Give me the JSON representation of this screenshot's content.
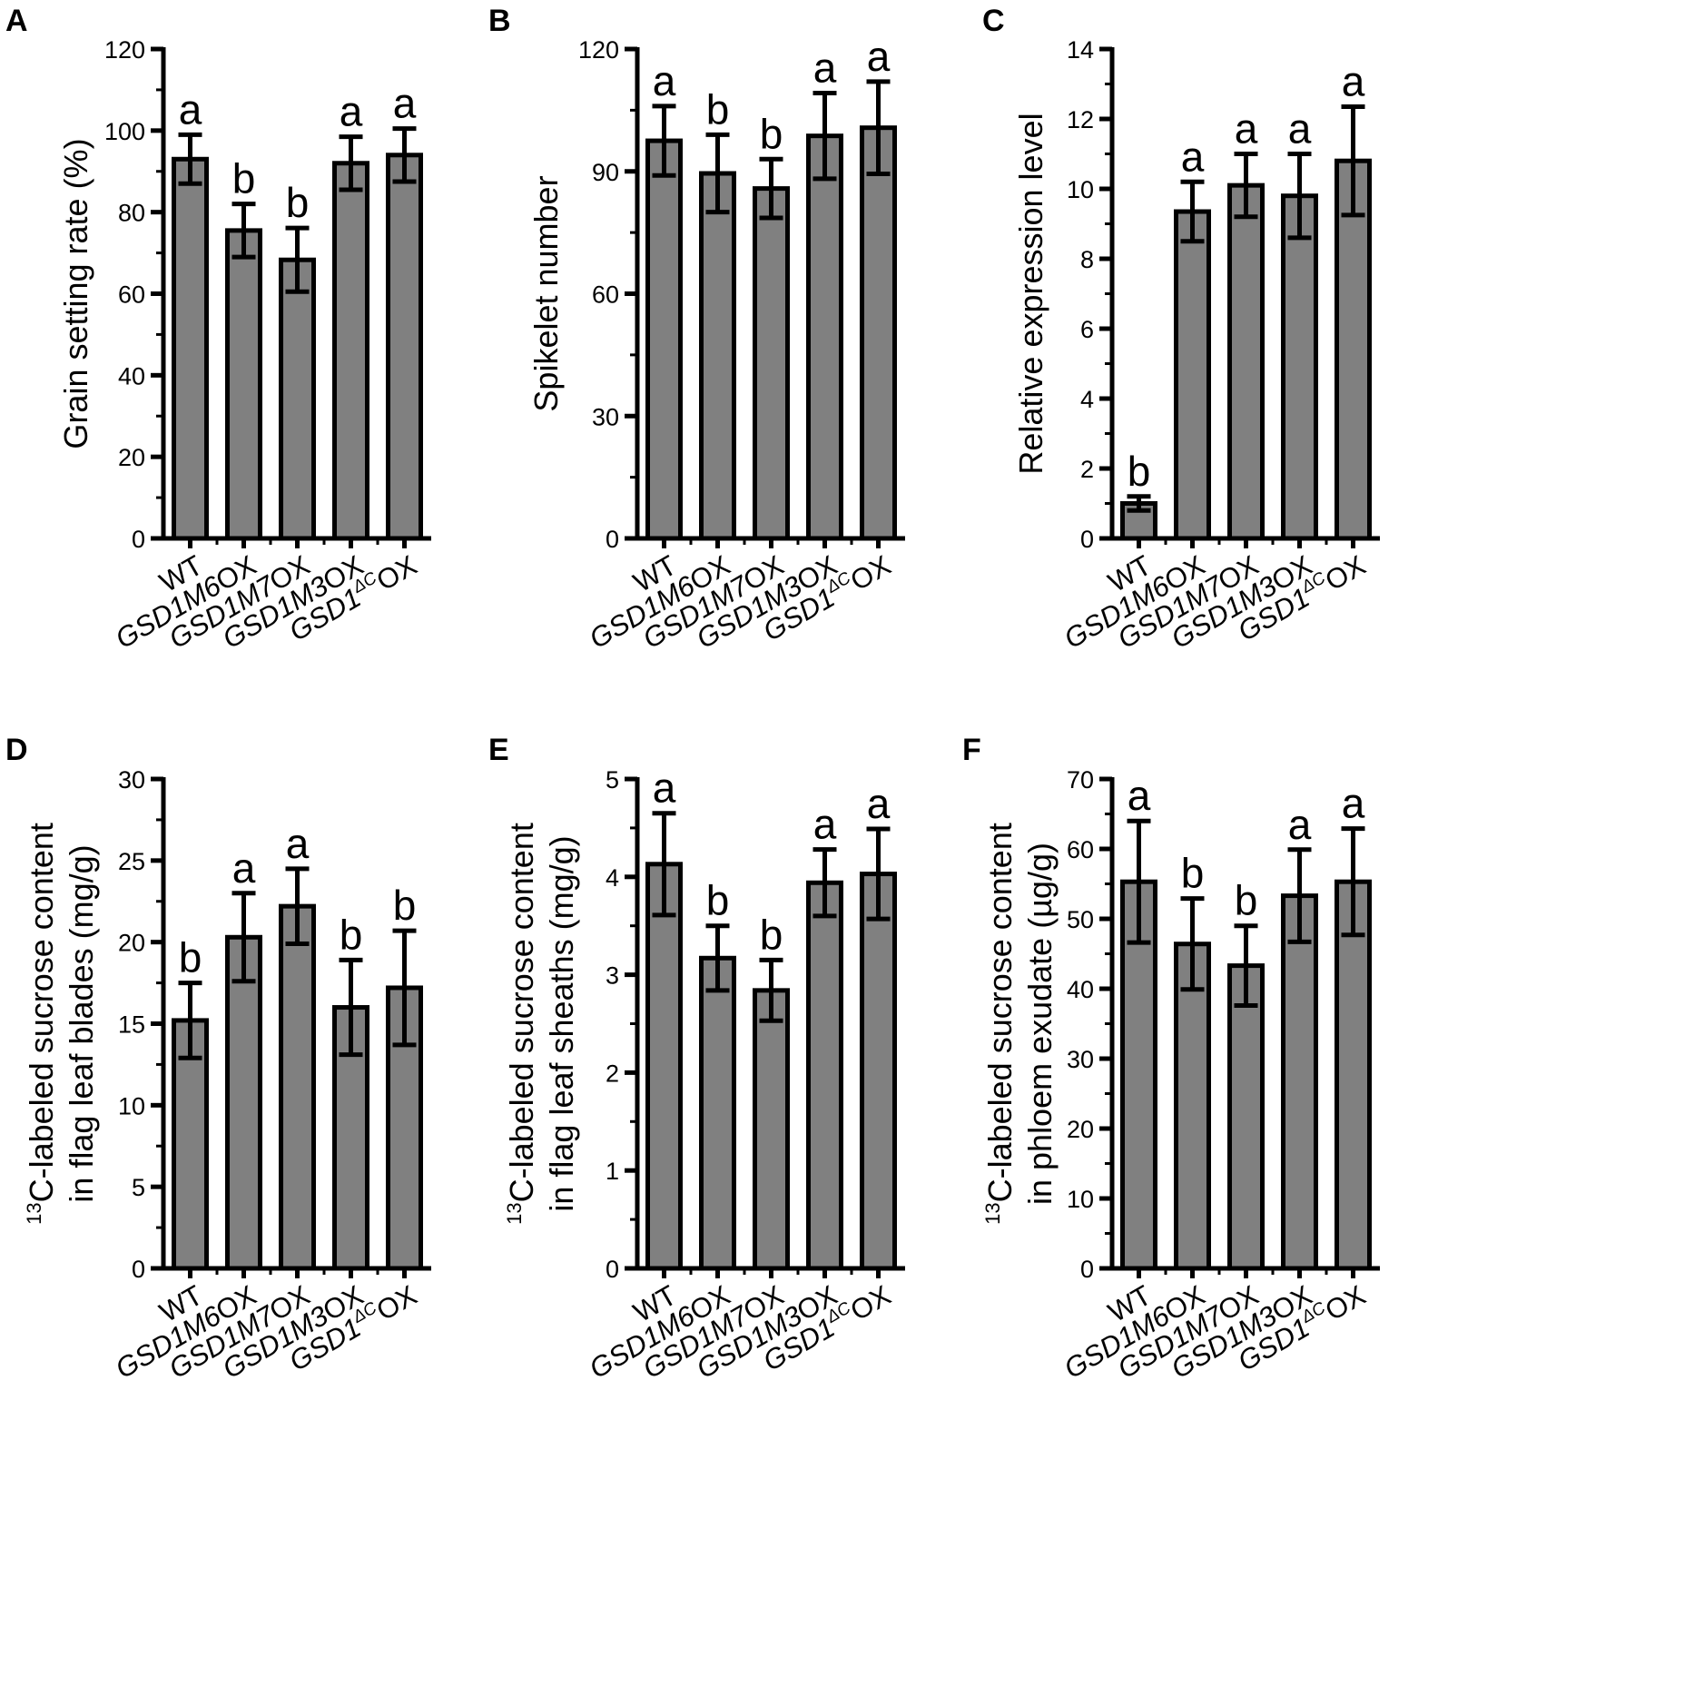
{
  "chart_data": [
    {
      "panel": "A",
      "type": "bar",
      "ylabel": "Grain setting rate (%)",
      "ylim": [
        0,
        120
      ],
      "yticks": [
        0,
        20,
        40,
        60,
        80,
        100,
        120
      ],
      "categories": [
        "WT",
        "GSD1M6OX",
        "GSD1M7OX",
        "GSD1M3OX",
        "GSD1ΔCOX"
      ],
      "values": [
        93,
        75.5,
        68.3,
        92,
        94
      ],
      "errors": [
        6,
        6.5,
        7.8,
        6.5,
        6.5
      ],
      "significance": [
        "a",
        "b",
        "b",
        "a",
        "a"
      ]
    },
    {
      "panel": "B",
      "type": "bar",
      "ylabel": "Spikelet number",
      "ylim": [
        0,
        120
      ],
      "yticks": [
        0,
        30,
        60,
        90,
        120
      ],
      "categories": [
        "WT",
        "GSD1M6OX",
        "GSD1M7OX",
        "GSD1M3OX",
        "GSD1ΔCOX"
      ],
      "values": [
        97.5,
        89.5,
        85.8,
        98.7,
        100.7
      ],
      "errors": [
        8.5,
        9.5,
        7.2,
        10.5,
        11.3
      ],
      "significance": [
        "a",
        "b",
        "b",
        "a",
        "a"
      ]
    },
    {
      "panel": "C",
      "type": "bar",
      "ylabel": "Relative expression level",
      "ylim": [
        0,
        14
      ],
      "yticks": [
        0,
        2,
        4,
        6,
        8,
        10,
        12,
        14
      ],
      "categories": [
        "WT",
        "GSD1M6OX",
        "GSD1M7OX",
        "GSD1M3OX",
        "GSD1ΔCOX"
      ],
      "values": [
        1.0,
        9.35,
        10.1,
        9.8,
        10.8
      ],
      "errors": [
        0.2,
        0.85,
        0.9,
        1.2,
        1.55
      ],
      "significance": [
        "b",
        "a",
        "a",
        "a",
        "a"
      ]
    },
    {
      "panel": "D",
      "type": "bar",
      "ylabel_sup": "13",
      "ylabel_line1": "C-labeled sucrose content",
      "ylabel_line2": "in flag leaf blades (mg/g)",
      "ylim": [
        0,
        30
      ],
      "yticks": [
        0,
        5,
        10,
        15,
        20,
        25,
        30
      ],
      "categories": [
        "WT",
        "GSD1M6OX",
        "GSD1M7OX",
        "GSD1M3OX",
        "GSD1ΔCOX"
      ],
      "values": [
        15.2,
        20.3,
        22.2,
        16.0,
        17.2
      ],
      "errors": [
        2.3,
        2.7,
        2.3,
        2.9,
        3.5
      ],
      "significance": [
        "b",
        "a",
        "a",
        "b",
        "b"
      ]
    },
    {
      "panel": "E",
      "type": "bar",
      "ylabel_sup": "13",
      "ylabel_line1": "C-labeled sucrose content",
      "ylabel_line2": "in flag leaf sheaths (mg/g)",
      "ylim": [
        0,
        5
      ],
      "yticks": [
        0,
        1,
        2,
        3,
        4,
        5
      ],
      "categories": [
        "WT",
        "GSD1M6OX",
        "GSD1M7OX",
        "GSD1M3OX",
        "GSD1ΔCOX"
      ],
      "values": [
        4.13,
        3.17,
        2.84,
        3.94,
        4.03
      ],
      "errors": [
        0.52,
        0.33,
        0.31,
        0.34,
        0.46
      ],
      "significance": [
        "a",
        "b",
        "b",
        "a",
        "a"
      ]
    },
    {
      "panel": "F",
      "type": "bar",
      "ylabel_sup": "13",
      "ylabel_line1": "C-labeled sucrose content",
      "ylabel_line2": "in phloem exudate (µg/g)",
      "ylim": [
        0,
        70
      ],
      "yticks": [
        0,
        10,
        20,
        30,
        40,
        50,
        60,
        70
      ],
      "categories": [
        "WT",
        "GSD1M6OX",
        "GSD1M7OX",
        "GSD1M3OX",
        "GSD1ΔCOX"
      ],
      "values": [
        55.3,
        46.4,
        43.3,
        53.3,
        55.3
      ],
      "errors": [
        8.7,
        6.5,
        5.7,
        6.6,
        7.6
      ],
      "significance": [
        "a",
        "b",
        "b",
        "a",
        "a"
      ]
    }
  ],
  "category_label_parts": [
    {
      "italic": "",
      "sup": "",
      "normal": "WT"
    },
    {
      "italic": "GSD1M6",
      "sup": "",
      "normal": "OX"
    },
    {
      "italic": "GSD1M7",
      "sup": "",
      "normal": "OX"
    },
    {
      "italic": "GSD1M3",
      "sup": "",
      "normal": "OX"
    },
    {
      "italic": "GSD1",
      "sup": "ΔC",
      "normal": "OX"
    }
  ],
  "colors": {
    "bar_fill": "#808080",
    "stroke": "#000000",
    "background": "#ffffff"
  }
}
